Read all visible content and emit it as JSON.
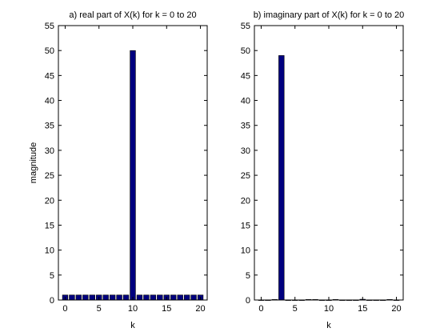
{
  "chart_data": [
    {
      "type": "bar",
      "title": "a) real part of X(k) for k = 0 to 20",
      "xlabel": "k",
      "ylabel": "magnitude",
      "xlim": [
        -1,
        21
      ],
      "ylim": [
        0,
        55
      ],
      "xticks": [
        "0",
        "5",
        "10",
        "15",
        "20"
      ],
      "yticks": [
        "0",
        "5",
        "10",
        "15",
        "20",
        "25",
        "30",
        "35",
        "40",
        "45",
        "50",
        "55"
      ],
      "x": [
        0,
        1,
        2,
        3,
        4,
        5,
        6,
        7,
        8,
        9,
        10,
        11,
        12,
        13,
        14,
        15,
        16,
        17,
        18,
        19,
        20
      ],
      "values": [
        1,
        1,
        1,
        1,
        1,
        1,
        1,
        1,
        1,
        1,
        50,
        1,
        1,
        1,
        1,
        1,
        1,
        1,
        1,
        1,
        1
      ],
      "bar_color": "#00007f",
      "grid": false
    },
    {
      "type": "bar",
      "title": "b) imaginary part of X(k) for k = 0 to 20",
      "xlabel": "k",
      "ylabel": "",
      "xlim": [
        -1,
        21
      ],
      "ylim": [
        0,
        55
      ],
      "xticks": [
        "0",
        "5",
        "10",
        "15",
        "20"
      ],
      "yticks": [
        "0",
        "5",
        "10",
        "15",
        "20",
        "25",
        "30",
        "35",
        "40",
        "45",
        "50",
        "55"
      ],
      "x": [
        0,
        1,
        2,
        3,
        4,
        5,
        6,
        7,
        8,
        9,
        10,
        11,
        12,
        13,
        14,
        15,
        16,
        17,
        18,
        19,
        20
      ],
      "values": [
        0,
        0,
        0.1,
        49,
        0,
        0,
        0,
        0.1,
        0.1,
        0,
        0,
        0.1,
        0,
        0,
        0,
        0.15,
        0,
        0,
        0,
        0.1,
        0
      ],
      "bar_color": "#00007f",
      "grid": false
    }
  ]
}
